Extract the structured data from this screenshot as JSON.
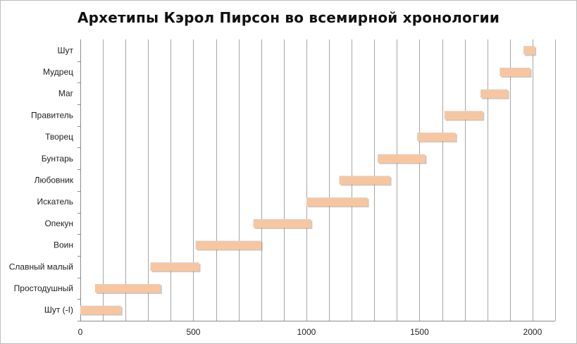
{
  "chart_data": {
    "type": "bar",
    "orientation": "horizontal",
    "title": "Архетипы Кэрол Пирсон во всемирной хронологии",
    "xlabel": "",
    "ylabel": "",
    "xlim": [
      0,
      2100
    ],
    "x_ticks": [
      0,
      500,
      1000,
      1500,
      2000
    ],
    "x_tick_labels": [
      "0",
      "500",
      "1000",
      "1500",
      "2000"
    ],
    "grid": "vertical lines every 100 units",
    "legend": "none",
    "colors": {
      "bar": "#f7c6a0",
      "bar_shadow": "#9e9e9e",
      "grid": "#a6a6a6",
      "axis": "#8c8c8c",
      "text": "#222222"
    },
    "categories": [
      "Шут (-I)",
      "Простодушный",
      "Славный малый",
      "Воин",
      "Опекун",
      "Искатель",
      "Любовник",
      "Бунтарь",
      "Творец",
      "Правитель",
      "Маг",
      "Мудрец",
      "Шут"
    ],
    "ranges": [
      [
        0,
        180
      ],
      [
        65,
        355
      ],
      [
        310,
        525
      ],
      [
        510,
        800
      ],
      [
        765,
        1020
      ],
      [
        1000,
        1270
      ],
      [
        1145,
        1370
      ],
      [
        1315,
        1525
      ],
      [
        1490,
        1660
      ],
      [
        1610,
        1780
      ],
      [
        1770,
        1890
      ],
      [
        1855,
        1990
      ],
      [
        1960,
        2010
      ]
    ]
  }
}
